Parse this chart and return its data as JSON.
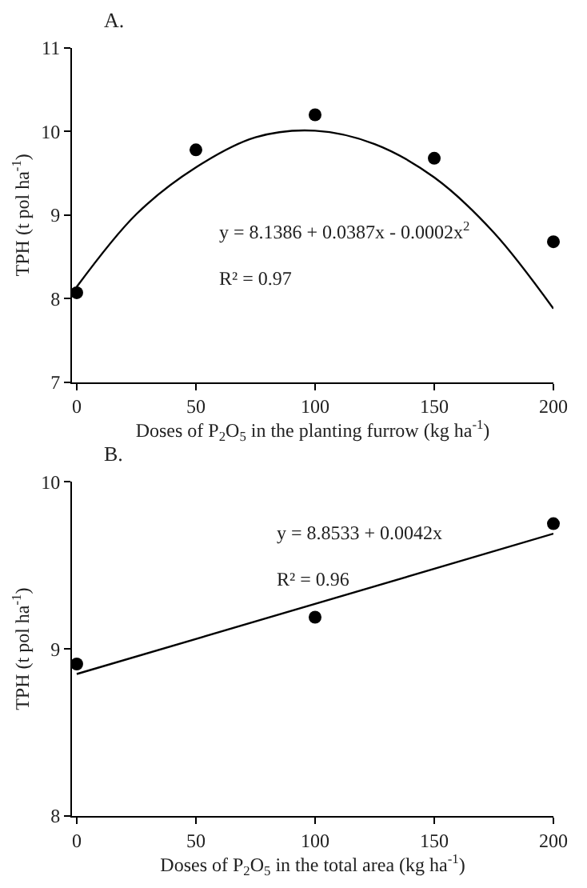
{
  "chart_data": [
    {
      "type": "scatter",
      "title": "A.",
      "xlabel": "Doses of P$_{2}$O$_{5}$ in the planting furrow (kg ha$^{-1}$)",
      "ylabel": "TPH (t pol ha$^{-1}$)",
      "annotations": [
        "y = 8.1386 + 0.0387x - 0.0002x$^{2}$",
        "R² = 0.97"
      ],
      "x": [
        0,
        50,
        100,
        150,
        200
      ],
      "series": [
        {
          "color": "#000000",
          "marker": "circle",
          "values": [
            8.07,
            9.78,
            10.2,
            9.68,
            8.68
          ]
        },
        {
          "type": "line",
          "color": "#000000",
          "marker": "none",
          "line_style": "solid",
          "x": [
            0,
            25,
            50,
            75,
            100,
            125,
            150,
            175,
            200
          ],
          "values": [
            8.14,
            9.01,
            9.57,
            9.93,
            10.01,
            9.85,
            9.45,
            8.79,
            7.88
          ]
        }
      ],
      "xlim": [
        -2,
        200
      ],
      "xticks": [
        0,
        50,
        100,
        150,
        200
      ],
      "ylim": [
        7,
        11
      ],
      "yticks": [
        7,
        8,
        9,
        10,
        11
      ]
    },
    {
      "type": "scatter",
      "title": "B.",
      "xlabel": "Doses of P$_{2}$O$_{5}$ in the total area (kg ha$^{-1}$)",
      "ylabel": "TPH (t pol ha$^{-1}$)",
      "annotations": [
        "y = 8.8533 + 0.0042x",
        "R² = 0.96"
      ],
      "x": [
        0,
        100,
        200
      ],
      "series": [
        {
          "color": "#000000",
          "marker": "circle",
          "values": [
            8.91,
            9.19,
            9.75
          ]
        },
        {
          "type": "line",
          "color": "#000000",
          "marker": "none",
          "line_style": "solid",
          "x": [
            0,
            200
          ],
          "values": [
            8.85,
            9.69
          ]
        }
      ],
      "xlim": [
        -2,
        200
      ],
      "xticks": [
        0,
        50,
        100,
        150,
        200
      ],
      "ylim": [
        8,
        10
      ],
      "yticks": [
        8,
        9,
        10
      ]
    }
  ]
}
